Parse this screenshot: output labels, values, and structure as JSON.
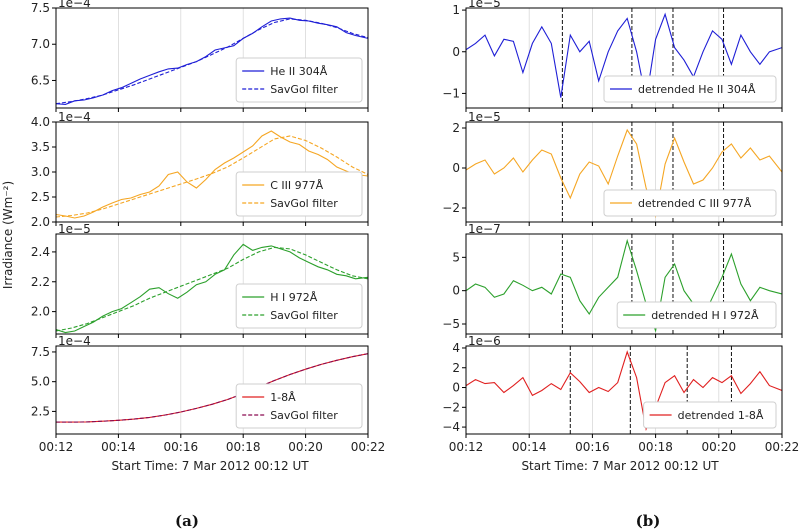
{
  "captions": [
    "(a)",
    "(b)"
  ],
  "common": {
    "ylabel": "Irradiance (Wm⁻²)",
    "xlabel": "Start Time: 7 Mar 2012 00:12 UT",
    "xticks": [
      "00:12",
      "00:14",
      "00:16",
      "00:18",
      "00:20",
      "00:22"
    ],
    "xlim": [
      0,
      10
    ]
  },
  "chart_data": [
    {
      "type": "line",
      "panel": "a1",
      "multiplier": "1e−4",
      "ylim": [
        6.12,
        7.5
      ],
      "yticks": [
        6.5,
        7.0,
        7.5
      ],
      "ytick_labels": [
        "6.5",
        "7.0",
        "7.5"
      ],
      "color": "#1f1fd6",
      "legend_position": "lower-right",
      "series": [
        {
          "name": "He II 304Å",
          "style": "solid",
          "x": [
            0,
            0.3,
            0.6,
            0.9,
            1.2,
            1.5,
            1.8,
            2.1,
            2.4,
            2.7,
            3.0,
            3.3,
            3.6,
            3.9,
            4.2,
            4.5,
            4.8,
            5.1,
            5.4,
            5.7,
            6.0,
            6.3,
            6.6,
            6.9,
            7.2,
            7.5,
            7.8,
            8.1,
            8.4,
            8.7,
            9.0,
            9.3,
            9.6,
            10
          ],
          "y": [
            6.18,
            6.17,
            6.22,
            6.23,
            6.26,
            6.3,
            6.36,
            6.4,
            6.46,
            6.52,
            6.57,
            6.62,
            6.66,
            6.67,
            6.72,
            6.76,
            6.83,
            6.92,
            6.95,
            6.98,
            7.08,
            7.15,
            7.24,
            7.32,
            7.35,
            7.36,
            7.33,
            7.32,
            7.29,
            7.27,
            7.24,
            7.16,
            7.12,
            7.08
          ]
        },
        {
          "name": "SavGol filter",
          "style": "dashed",
          "x": [
            0,
            0.5,
            1,
            1.5,
            2,
            2.5,
            3,
            3.5,
            4,
            4.5,
            5,
            5.5,
            6,
            6.5,
            7,
            7.5,
            8,
            8.5,
            9,
            9.5,
            10
          ],
          "y": [
            6.18,
            6.21,
            6.25,
            6.3,
            6.37,
            6.44,
            6.52,
            6.6,
            6.68,
            6.76,
            6.86,
            6.96,
            7.08,
            7.2,
            7.3,
            7.35,
            7.33,
            7.29,
            7.23,
            7.15,
            7.09
          ]
        }
      ]
    },
    {
      "type": "line",
      "panel": "a2",
      "multiplier": "1e−4",
      "ylim": [
        2.0,
        4.0
      ],
      "yticks": [
        2.0,
        2.5,
        3.0,
        3.5,
        4.0
      ],
      "ytick_labels": [
        "2.0",
        "2.5",
        "3.0",
        "3.5",
        "4.0"
      ],
      "color": "#f5a623",
      "legend_position": "lower-right",
      "series": [
        {
          "name": "C III 977Å",
          "style": "solid",
          "x": [
            0,
            0.3,
            0.6,
            0.9,
            1.2,
            1.5,
            1.8,
            2.1,
            2.4,
            2.7,
            3.0,
            3.3,
            3.6,
            3.9,
            4.2,
            4.5,
            4.8,
            5.1,
            5.4,
            5.7,
            6.0,
            6.3,
            6.6,
            6.9,
            7.2,
            7.5,
            7.8,
            8.1,
            8.4,
            8.7,
            9.0,
            9.3,
            9.6,
            10
          ],
          "y": [
            2.15,
            2.12,
            2.08,
            2.12,
            2.2,
            2.3,
            2.38,
            2.45,
            2.48,
            2.55,
            2.6,
            2.72,
            2.95,
            3.0,
            2.8,
            2.68,
            2.85,
            3.05,
            3.18,
            3.28,
            3.4,
            3.52,
            3.72,
            3.82,
            3.7,
            3.6,
            3.55,
            3.42,
            3.35,
            3.25,
            3.1,
            3.02,
            2.95,
            2.92
          ]
        },
        {
          "name": "SavGol filter",
          "style": "dashed",
          "x": [
            0,
            0.5,
            1,
            1.5,
            2,
            2.5,
            3,
            3.5,
            4,
            4.5,
            5,
            5.5,
            6,
            6.5,
            7,
            7.5,
            8,
            8.5,
            9,
            9.5,
            10
          ],
          "y": [
            2.1,
            2.13,
            2.18,
            2.26,
            2.36,
            2.46,
            2.56,
            2.66,
            2.76,
            2.86,
            2.97,
            3.1,
            3.28,
            3.47,
            3.66,
            3.72,
            3.63,
            3.48,
            3.3,
            3.1,
            2.95
          ]
        }
      ]
    },
    {
      "type": "line",
      "panel": "a3",
      "multiplier": "1e−5",
      "ylim": [
        1.85,
        2.52
      ],
      "yticks": [
        2.0,
        2.2,
        2.4
      ],
      "ytick_labels": [
        "2.0",
        "2.2",
        "2.4"
      ],
      "color": "#2ca02c",
      "legend_position": "lower-right",
      "series": [
        {
          "name": "H I 972Å",
          "style": "solid",
          "x": [
            0,
            0.3,
            0.6,
            0.9,
            1.2,
            1.5,
            1.8,
            2.1,
            2.4,
            2.7,
            3.0,
            3.3,
            3.6,
            3.9,
            4.2,
            4.5,
            4.8,
            5.1,
            5.4,
            5.7,
            6.0,
            6.3,
            6.6,
            6.9,
            7.2,
            7.5,
            7.8,
            8.1,
            8.4,
            8.7,
            9.0,
            9.3,
            9.6,
            10
          ],
          "y": [
            1.88,
            1.86,
            1.87,
            1.9,
            1.93,
            1.97,
            2.0,
            2.02,
            2.06,
            2.1,
            2.15,
            2.16,
            2.12,
            2.09,
            2.13,
            2.18,
            2.2,
            2.25,
            2.28,
            2.38,
            2.45,
            2.41,
            2.43,
            2.44,
            2.42,
            2.4,
            2.36,
            2.33,
            2.3,
            2.28,
            2.25,
            2.24,
            2.22,
            2.23
          ]
        },
        {
          "name": "SavGol filter",
          "style": "dashed",
          "x": [
            0,
            0.5,
            1,
            1.5,
            2,
            2.5,
            3,
            3.5,
            4,
            4.5,
            5,
            5.5,
            6,
            6.5,
            7,
            7.5,
            8,
            8.5,
            9,
            9.5,
            10
          ],
          "y": [
            1.87,
            1.89,
            1.92,
            1.96,
            2.0,
            2.04,
            2.09,
            2.13,
            2.17,
            2.21,
            2.25,
            2.29,
            2.35,
            2.4,
            2.43,
            2.42,
            2.38,
            2.33,
            2.28,
            2.24,
            2.22
          ]
        }
      ]
    },
    {
      "type": "line",
      "panel": "a4",
      "multiplier": "1e−4",
      "ylim": [
        0.6,
        8.0
      ],
      "yticks": [
        2.5,
        5.0,
        7.5
      ],
      "ytick_labels": [
        "2.5",
        "5.0",
        "7.5"
      ],
      "color": "#e02020",
      "dashed_color": "#8b0a50",
      "legend_position": "lower-right",
      "series": [
        {
          "name": "1-8Å",
          "style": "solid",
          "x": [
            0,
            0.5,
            1,
            1.5,
            2,
            2.5,
            3,
            3.5,
            4,
            4.5,
            5,
            5.5,
            6,
            6.5,
            7,
            7.5,
            8,
            8.5,
            9,
            9.5,
            10
          ],
          "y": [
            1.6,
            1.6,
            1.62,
            1.68,
            1.75,
            1.85,
            2.0,
            2.2,
            2.45,
            2.75,
            3.1,
            3.5,
            4.0,
            4.55,
            5.1,
            5.6,
            6.05,
            6.45,
            6.8,
            7.1,
            7.35
          ]
        },
        {
          "name": "SavGol filter",
          "style": "dashed",
          "x": [
            0,
            0.5,
            1,
            1.5,
            2,
            2.5,
            3,
            3.5,
            4,
            4.5,
            5,
            5.5,
            6,
            6.5,
            7,
            7.5,
            8,
            8.5,
            9,
            9.5,
            10
          ],
          "y": [
            1.6,
            1.6,
            1.62,
            1.68,
            1.75,
            1.85,
            2.0,
            2.2,
            2.45,
            2.75,
            3.1,
            3.5,
            4.0,
            4.55,
            5.1,
            5.6,
            6.05,
            6.45,
            6.8,
            7.1,
            7.35
          ]
        }
      ]
    },
    {
      "type": "line",
      "panel": "b1",
      "multiplier": "1e−5",
      "ylim": [
        -1.35,
        1.05
      ],
      "yticks": [
        -1,
        0,
        1
      ],
      "ytick_labels": [
        "−1",
        "0",
        "1"
      ],
      "color": "#1f1fd6",
      "legend_position": "lower-right",
      "vlines": [
        3.05,
        5.25,
        6.55,
        8.15
      ],
      "series": [
        {
          "name": "detrended He II 304Å",
          "style": "solid",
          "x": [
            0,
            0.3,
            0.6,
            0.9,
            1.2,
            1.5,
            1.8,
            2.1,
            2.4,
            2.7,
            3.0,
            3.3,
            3.6,
            3.9,
            4.2,
            4.5,
            4.8,
            5.1,
            5.4,
            5.7,
            6.0,
            6.3,
            6.6,
            6.9,
            7.2,
            7.5,
            7.8,
            8.1,
            8.4,
            8.7,
            9.0,
            9.3,
            9.6,
            10
          ],
          "y": [
            0.05,
            0.2,
            0.4,
            -0.1,
            0.3,
            0.25,
            -0.5,
            0.2,
            0.6,
            0.2,
            -1.1,
            0.4,
            0.0,
            0.25,
            -0.7,
            0.0,
            0.5,
            0.8,
            0.0,
            -1.15,
            0.3,
            0.9,
            0.1,
            -0.2,
            -0.6,
            0.0,
            0.5,
            0.3,
            -0.3,
            0.4,
            0.0,
            -0.3,
            0.0,
            0.1
          ]
        }
      ]
    },
    {
      "type": "line",
      "panel": "b2",
      "multiplier": "1e−5",
      "ylim": [
        -2.7,
        2.3
      ],
      "yticks": [
        -2,
        0,
        2
      ],
      "ytick_labels": [
        "−2",
        "0",
        "2"
      ],
      "color": "#f5a623",
      "legend_position": "lower-right",
      "vlines": [
        3.05,
        5.25,
        6.55,
        8.15
      ],
      "series": [
        {
          "name": "detrended C III 977Å",
          "style": "solid",
          "x": [
            0,
            0.3,
            0.6,
            0.9,
            1.2,
            1.5,
            1.8,
            2.1,
            2.4,
            2.7,
            3.0,
            3.3,
            3.6,
            3.9,
            4.2,
            4.5,
            4.8,
            5.1,
            5.4,
            5.7,
            6.0,
            6.3,
            6.6,
            6.9,
            7.2,
            7.5,
            7.8,
            8.1,
            8.4,
            8.7,
            9.0,
            9.3,
            9.6,
            10
          ],
          "y": [
            -0.1,
            0.2,
            0.4,
            -0.3,
            0.0,
            0.5,
            -0.2,
            0.4,
            0.9,
            0.7,
            -0.5,
            -1.5,
            -0.3,
            0.3,
            0.1,
            -0.8,
            0.6,
            1.9,
            1.2,
            -1.0,
            -2.4,
            0.2,
            1.5,
            0.3,
            -0.8,
            -0.6,
            0.0,
            0.8,
            1.2,
            0.5,
            1.0,
            0.4,
            0.6,
            -0.2
          ]
        }
      ]
    },
    {
      "type": "line",
      "panel": "b3",
      "multiplier": "1e−7",
      "ylim": [
        -6.5,
        8.5
      ],
      "yticks": [
        -5,
        0,
        5
      ],
      "ytick_labels": [
        "−5",
        "0",
        "5"
      ],
      "color": "#2ca02c",
      "legend_position": "lower-right",
      "vlines": [
        3.05,
        5.25,
        6.55,
        8.15
      ],
      "series": [
        {
          "name": "detrended H I 972Å",
          "style": "solid",
          "x": [
            0,
            0.3,
            0.6,
            0.9,
            1.2,
            1.5,
            1.8,
            2.1,
            2.4,
            2.7,
            3.0,
            3.3,
            3.6,
            3.9,
            4.2,
            4.5,
            4.8,
            5.1,
            5.4,
            5.7,
            6.0,
            6.3,
            6.6,
            6.9,
            7.2,
            7.5,
            7.8,
            8.1,
            8.4,
            8.7,
            9.0,
            9.3,
            9.6,
            10
          ],
          "y": [
            0.0,
            1.0,
            0.5,
            -1.0,
            -0.5,
            1.5,
            0.8,
            0.0,
            0.5,
            -0.5,
            2.5,
            2.0,
            -1.5,
            -3.5,
            -1.0,
            0.5,
            2.0,
            7.5,
            3.0,
            -2.0,
            -6.0,
            2.0,
            4.0,
            0.0,
            -2.0,
            -4.0,
            -1.0,
            2.0,
            5.5,
            1.0,
            -1.5,
            0.5,
            0.0,
            -0.5
          ]
        }
      ]
    },
    {
      "type": "line",
      "panel": "b4",
      "multiplier": "1e−6",
      "ylim": [
        -4.7,
        4.2
      ],
      "yticks": [
        -4,
        -2,
        0,
        2,
        4
      ],
      "ytick_labels": [
        "−4",
        "−2",
        "0",
        "2",
        "4"
      ],
      "color": "#e02020",
      "legend_position": "lower-right",
      "vlines": [
        3.3,
        5.2,
        7.0,
        8.4
      ],
      "series": [
        {
          "name": "detrended 1-8Å",
          "style": "solid",
          "x": [
            0,
            0.3,
            0.6,
            0.9,
            1.2,
            1.5,
            1.8,
            2.1,
            2.4,
            2.7,
            3.0,
            3.3,
            3.6,
            3.9,
            4.2,
            4.5,
            4.8,
            5.1,
            5.4,
            5.7,
            6.0,
            6.3,
            6.6,
            6.9,
            7.2,
            7.5,
            7.8,
            8.1,
            8.4,
            8.7,
            9.0,
            9.3,
            9.6,
            10
          ],
          "y": [
            0.2,
            0.8,
            0.4,
            0.5,
            -0.5,
            0.2,
            1.0,
            -0.8,
            -0.3,
            0.4,
            -0.2,
            1.5,
            0.6,
            -0.5,
            0.0,
            -0.4,
            0.5,
            3.6,
            1.0,
            -4.2,
            -2.0,
            0.5,
            1.2,
            -0.5,
            0.8,
            0.0,
            1.0,
            0.5,
            1.2,
            -0.6,
            0.4,
            1.6,
            0.2,
            -0.3
          ]
        }
      ]
    }
  ]
}
